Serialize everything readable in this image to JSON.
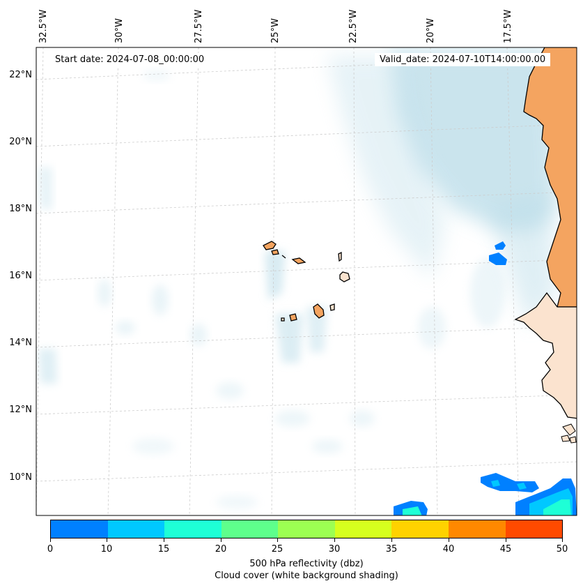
{
  "header": {
    "start_date": "Start date: 2024-07-08_00:00:00",
    "valid_date": "Valid_date: 2024-07-10T14:00:00.00"
  },
  "axes": {
    "lon_labels": [
      "32.5°W",
      "30°W",
      "27.5°W",
      "25°W",
      "22.5°W",
      "20°W",
      "17.5°W"
    ],
    "lat_labels": [
      "22°N",
      "20°N",
      "18°N",
      "16°N",
      "14°N",
      "12°N",
      "10°N"
    ]
  },
  "colorbar": {
    "ticks": [
      "0",
      "10",
      "15",
      "20",
      "25",
      "30",
      "35",
      "40",
      "45",
      "50"
    ],
    "colors": [
      "#0080ff",
      "#00c8ff",
      "#1effd6",
      "#5eff8c",
      "#9cff52",
      "#d6ff1e",
      "#ffd200",
      "#ff8800",
      "#ff4a00"
    ],
    "title_line1": "500 hPa reflectivity (dbz)",
    "title_line2": "Cloud cover (white background shading)"
  },
  "colors": {
    "land": "#f4a460",
    "land_light": "#fbe3cf",
    "cloud": "#b9dce8",
    "grid": "#cccccc"
  }
}
